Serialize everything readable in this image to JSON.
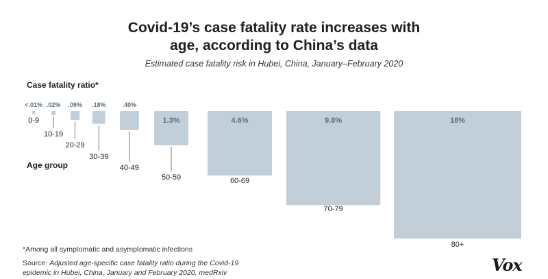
{
  "title_line1": "Covid-19’s case fatality rate increases with",
  "title_line2": "age, according to China’s data",
  "subtitle": "Estimated case fatality risk in Hubei, China, January–February 2020",
  "footnote": "*Among all symptomatic and asymptomatic infections",
  "source_label": "Source: ",
  "source_body": "Adjusted age-specific case fatality ratio during the Covid-19 epidemic in Hubei, China, January and February 2020, medRxiv",
  "logo": "Vox",
  "colors": {
    "square": "#c2cfd9",
    "value_text": "#5b6e7c",
    "connector": "#555555"
  },
  "chart_data": {
    "type": "proportional-squares",
    "title": "Covid-19’s case fatality rate increases with age, according to China’s data",
    "value_axis_label": "Case fatality ratio*",
    "category_axis_label": "Age group",
    "categories": [
      "0-9",
      "10-19",
      "20-29",
      "30-39",
      "40-49",
      "50-59",
      "60-69",
      "70-79",
      "80+"
    ],
    "value_labels": [
      "<.01%",
      ".02%",
      ".09%",
      ".18%",
      ".40%",
      "1.3%",
      "4.6%",
      "9.8%",
      "18%"
    ],
    "values_percent": [
      0.01,
      0.02,
      0.09,
      0.18,
      0.4,
      1.3,
      4.6,
      9.8,
      18
    ]
  }
}
